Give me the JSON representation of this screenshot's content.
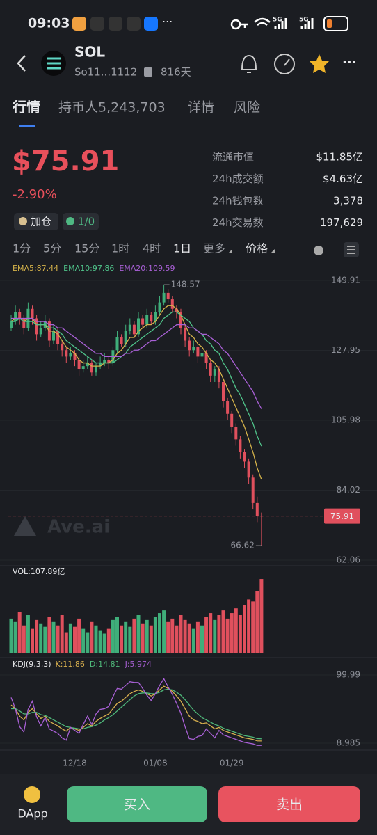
{
  "status_bar": {
    "time": "09:03",
    "network_1": "5G",
    "network_2": "5G"
  },
  "header": {
    "title": "SOL",
    "address": "So11...1112",
    "age": "816天"
  },
  "tabs": [
    "行情",
    "持币人5,243,703",
    "详情",
    "风险"
  ],
  "price": {
    "value": "$75.91",
    "change": "-2.90%",
    "badge_1": "加仓",
    "badge_2": "1/0"
  },
  "stats": [
    [
      "流通市值",
      "$11.85亿"
    ],
    [
      "24h成交额",
      "$4.63亿"
    ],
    [
      "24h钱包数",
      "3,378"
    ],
    [
      "24h交易数",
      "197,629"
    ]
  ],
  "timeframes": [
    "1分",
    "5分",
    "15分",
    "1时",
    "4时",
    "1日",
    "更多",
    "价格"
  ],
  "watermark": "Ave.ai",
  "chart_data": [
    {
      "type": "candlestick",
      "up_color": "#3fae7a",
      "down_color": "#e0505d",
      "grid": true,
      "ylim": [
        62.06,
        149.91
      ],
      "yticks": [
        149.91,
        127.95,
        105.98,
        84.02,
        62.06
      ],
      "candles": [
        [
          135,
          139,
          134,
          137
        ],
        [
          137,
          142,
          136,
          140
        ],
        [
          140,
          141,
          136,
          138
        ],
        [
          138,
          139,
          133,
          135
        ],
        [
          135,
          143,
          134,
          141
        ],
        [
          141,
          142,
          136,
          138
        ],
        [
          138,
          139,
          131,
          133
        ],
        [
          133,
          137,
          132,
          135
        ],
        [
          135,
          139,
          134,
          137
        ],
        [
          137,
          138,
          129,
          131
        ],
        [
          131,
          136,
          130,
          134
        ],
        [
          134,
          135,
          128,
          130
        ],
        [
          130,
          131,
          126,
          128
        ],
        [
          128,
          129,
          124,
          126
        ],
        [
          126,
          129,
          125,
          127
        ],
        [
          127,
          128,
          123,
          125
        ],
        [
          125,
          126,
          120,
          122
        ],
        [
          122,
          125,
          121,
          123
        ],
        [
          123,
          126,
          122,
          124
        ],
        [
          124,
          125,
          120,
          121
        ],
        [
          121,
          124,
          120,
          123
        ],
        [
          123,
          126,
          122,
          124
        ],
        [
          124,
          127,
          123,
          125
        ],
        [
          125,
          126,
          122,
          124
        ],
        [
          124,
          129,
          123,
          128
        ],
        [
          128,
          134,
          127,
          132
        ],
        [
          132,
          133,
          129,
          130
        ],
        [
          130,
          136,
          129,
          134
        ],
        [
          134,
          138,
          133,
          136
        ],
        [
          136,
          137,
          132,
          133
        ],
        [
          133,
          140,
          132,
          138
        ],
        [
          138,
          139,
          135,
          136
        ],
        [
          136,
          141,
          135,
          139
        ],
        [
          139,
          140,
          136,
          137
        ],
        [
          137,
          142,
          136,
          140
        ],
        [
          140,
          145,
          139,
          143
        ],
        [
          143,
          148.57,
          142,
          146
        ],
        [
          146,
          147,
          143,
          144
        ],
        [
          144,
          145,
          140,
          141
        ],
        [
          141,
          142,
          138,
          140
        ],
        [
          140,
          141,
          133,
          135
        ],
        [
          135,
          136,
          129,
          131
        ],
        [
          131,
          132,
          126,
          128
        ],
        [
          128,
          131,
          127,
          129
        ],
        [
          129,
          130,
          124,
          126
        ],
        [
          126,
          129,
          125,
          127
        ],
        [
          127,
          128,
          122,
          124
        ],
        [
          124,
          125,
          118,
          120
        ],
        [
          120,
          123,
          118,
          122
        ],
        [
          122,
          123,
          116,
          118
        ],
        [
          118,
          119,
          110,
          112
        ],
        [
          112,
          113,
          106,
          108
        ],
        [
          108,
          109,
          102,
          104
        ],
        [
          104,
          105,
          98,
          100
        ],
        [
          100,
          101,
          94,
          96
        ],
        [
          96,
          97,
          91,
          93
        ],
        [
          93,
          94,
          86,
          88
        ],
        [
          88,
          89,
          78,
          80
        ],
        [
          80,
          82,
          74,
          76
        ],
        [
          76,
          77,
          66.62,
          75.91
        ]
      ],
      "series": [
        {
          "name": "EMA5:87.44",
          "color": "#d4b24a",
          "values": [
            137,
            138,
            138,
            137,
            138,
            138,
            136,
            136,
            136,
            134,
            134,
            133,
            131,
            129,
            128,
            127,
            125,
            124,
            124,
            123,
            123,
            123,
            124,
            124,
            125,
            127,
            128,
            130,
            132,
            132,
            134,
            135,
            136,
            136,
            137,
            139,
            141,
            142,
            142,
            141,
            139,
            136,
            133,
            132,
            130,
            129,
            127,
            125,
            124,
            122,
            119,
            116,
            113,
            110,
            107,
            104,
            100,
            96,
            91,
            87.44
          ]
        },
        {
          "name": "EMA10:97.86",
          "color": "#4fc38a",
          "values": [
            137,
            137,
            138,
            137,
            137,
            137,
            136,
            136,
            136,
            135,
            135,
            134,
            133,
            131,
            130,
            129,
            128,
            127,
            126,
            125,
            124,
            124,
            124,
            124,
            124,
            125,
            126,
            127,
            129,
            130,
            131,
            132,
            133,
            134,
            135,
            136,
            138,
            139,
            140,
            140,
            139,
            138,
            137,
            135,
            134,
            133,
            131,
            130,
            128,
            127,
            124,
            122,
            119,
            116,
            114,
            111,
            108,
            105,
            101,
            97.86
          ]
        },
        {
          "name": "EMA20:109.59",
          "color": "#a960d6",
          "values": [
            138,
            138,
            138,
            138,
            138,
            138,
            137,
            137,
            137,
            136,
            136,
            135,
            135,
            134,
            133,
            132,
            131,
            130,
            129,
            128,
            127,
            127,
            126,
            126,
            126,
            126,
            126,
            127,
            127,
            128,
            128,
            129,
            130,
            131,
            131,
            132,
            133,
            134,
            135,
            136,
            136,
            136,
            135,
            135,
            134,
            133,
            133,
            132,
            131,
            130,
            128,
            127,
            125,
            123,
            121,
            119,
            117,
            115,
            112,
            109.59
          ]
        }
      ]
    },
    {
      "type": "bar",
      "title": "VOL:107.89亿",
      "ylim": [
        0,
        110
      ],
      "values": [
        50,
        45,
        60,
        40,
        55,
        35,
        48,
        42,
        38,
        52,
        45,
        40,
        55,
        30,
        42,
        38,
        50,
        35,
        30,
        45,
        40,
        32,
        28,
        35,
        48,
        52,
        40,
        45,
        38,
        50,
        55,
        42,
        48,
        40,
        52,
        58,
        62,
        45,
        50,
        40,
        55,
        48,
        42,
        35,
        45,
        40,
        52,
        58,
        48,
        55,
        62,
        50,
        58,
        65,
        55,
        70,
        78,
        75,
        90,
        107.89
      ]
    },
    {
      "type": "line",
      "title": "KDJ(9,3,3)",
      "grid": true,
      "ylim": [
        8.985,
        99.99
      ],
      "yticks": [
        99.99,
        8.985
      ],
      "categories": [
        null,
        null,
        null,
        null,
        null,
        null,
        null,
        null,
        null,
        null,
        null,
        null,
        null,
        null,
        null,
        "12/18",
        null,
        null,
        null,
        null,
        null,
        null,
        null,
        null,
        null,
        null,
        null,
        null,
        null,
        null,
        null,
        null,
        null,
        null,
        "01/08",
        null,
        null,
        null,
        null,
        null,
        null,
        null,
        null,
        null,
        null,
        null,
        null,
        null,
        null,
        null,
        null,
        null,
        "01/29",
        null,
        null,
        null,
        null,
        null,
        null,
        null
      ],
      "series": [
        {
          "name": "K:11.86",
          "color": "#d8b04e",
          "values": [
            60,
            55,
            45,
            40,
            50,
            55,
            48,
            42,
            45,
            38,
            35,
            32,
            28,
            25,
            30,
            28,
            26,
            30,
            35,
            32,
            38,
            42,
            45,
            48,
            55,
            62,
            65,
            70,
            75,
            78,
            80,
            78,
            75,
            72,
            75,
            80,
            85,
            82,
            78,
            72,
            65,
            55,
            45,
            40,
            38,
            35,
            36,
            32,
            28,
            30,
            26,
            24,
            22,
            20,
            18,
            16,
            15,
            14,
            12,
            11.86
          ]
        },
        {
          "name": "D:14.81",
          "color": "#4fb87a",
          "values": [
            55,
            55,
            52,
            48,
            48,
            50,
            50,
            47,
            46,
            43,
            40,
            37,
            34,
            31,
            30,
            29,
            28,
            28,
            30,
            31,
            33,
            36,
            40,
            43,
            47,
            52,
            57,
            62,
            67,
            72,
            75,
            76,
            76,
            75,
            75,
            77,
            80,
            81,
            80,
            77,
            73,
            67,
            60,
            53,
            48,
            43,
            40,
            37,
            34,
            32,
            29,
            27,
            25,
            23,
            21,
            19,
            18,
            17,
            15,
            14.81
          ]
        },
        {
          "name": "J:5.974",
          "color": "#a960d6",
          "values": [
            70,
            55,
            31,
            24,
            54,
            65,
            44,
            32,
            43,
            28,
            25,
            22,
            16,
            13,
            30,
            26,
            22,
            34,
            45,
            34,
            48,
            54,
            55,
            58,
            71,
            82,
            81,
            86,
            91,
            90,
            90,
            82,
            73,
            66,
            75,
            86,
            95,
            84,
            74,
            62,
            49,
            31,
            15,
            14,
            18,
            19,
            28,
            22,
            16,
            26,
            20,
            18,
            16,
            14,
            12,
            10,
            9,
            8,
            6,
            5.974
          ]
        }
      ]
    }
  ],
  "bottom_bar": {
    "dapp": "DApp",
    "buy": "买入",
    "sell": "卖出"
  }
}
